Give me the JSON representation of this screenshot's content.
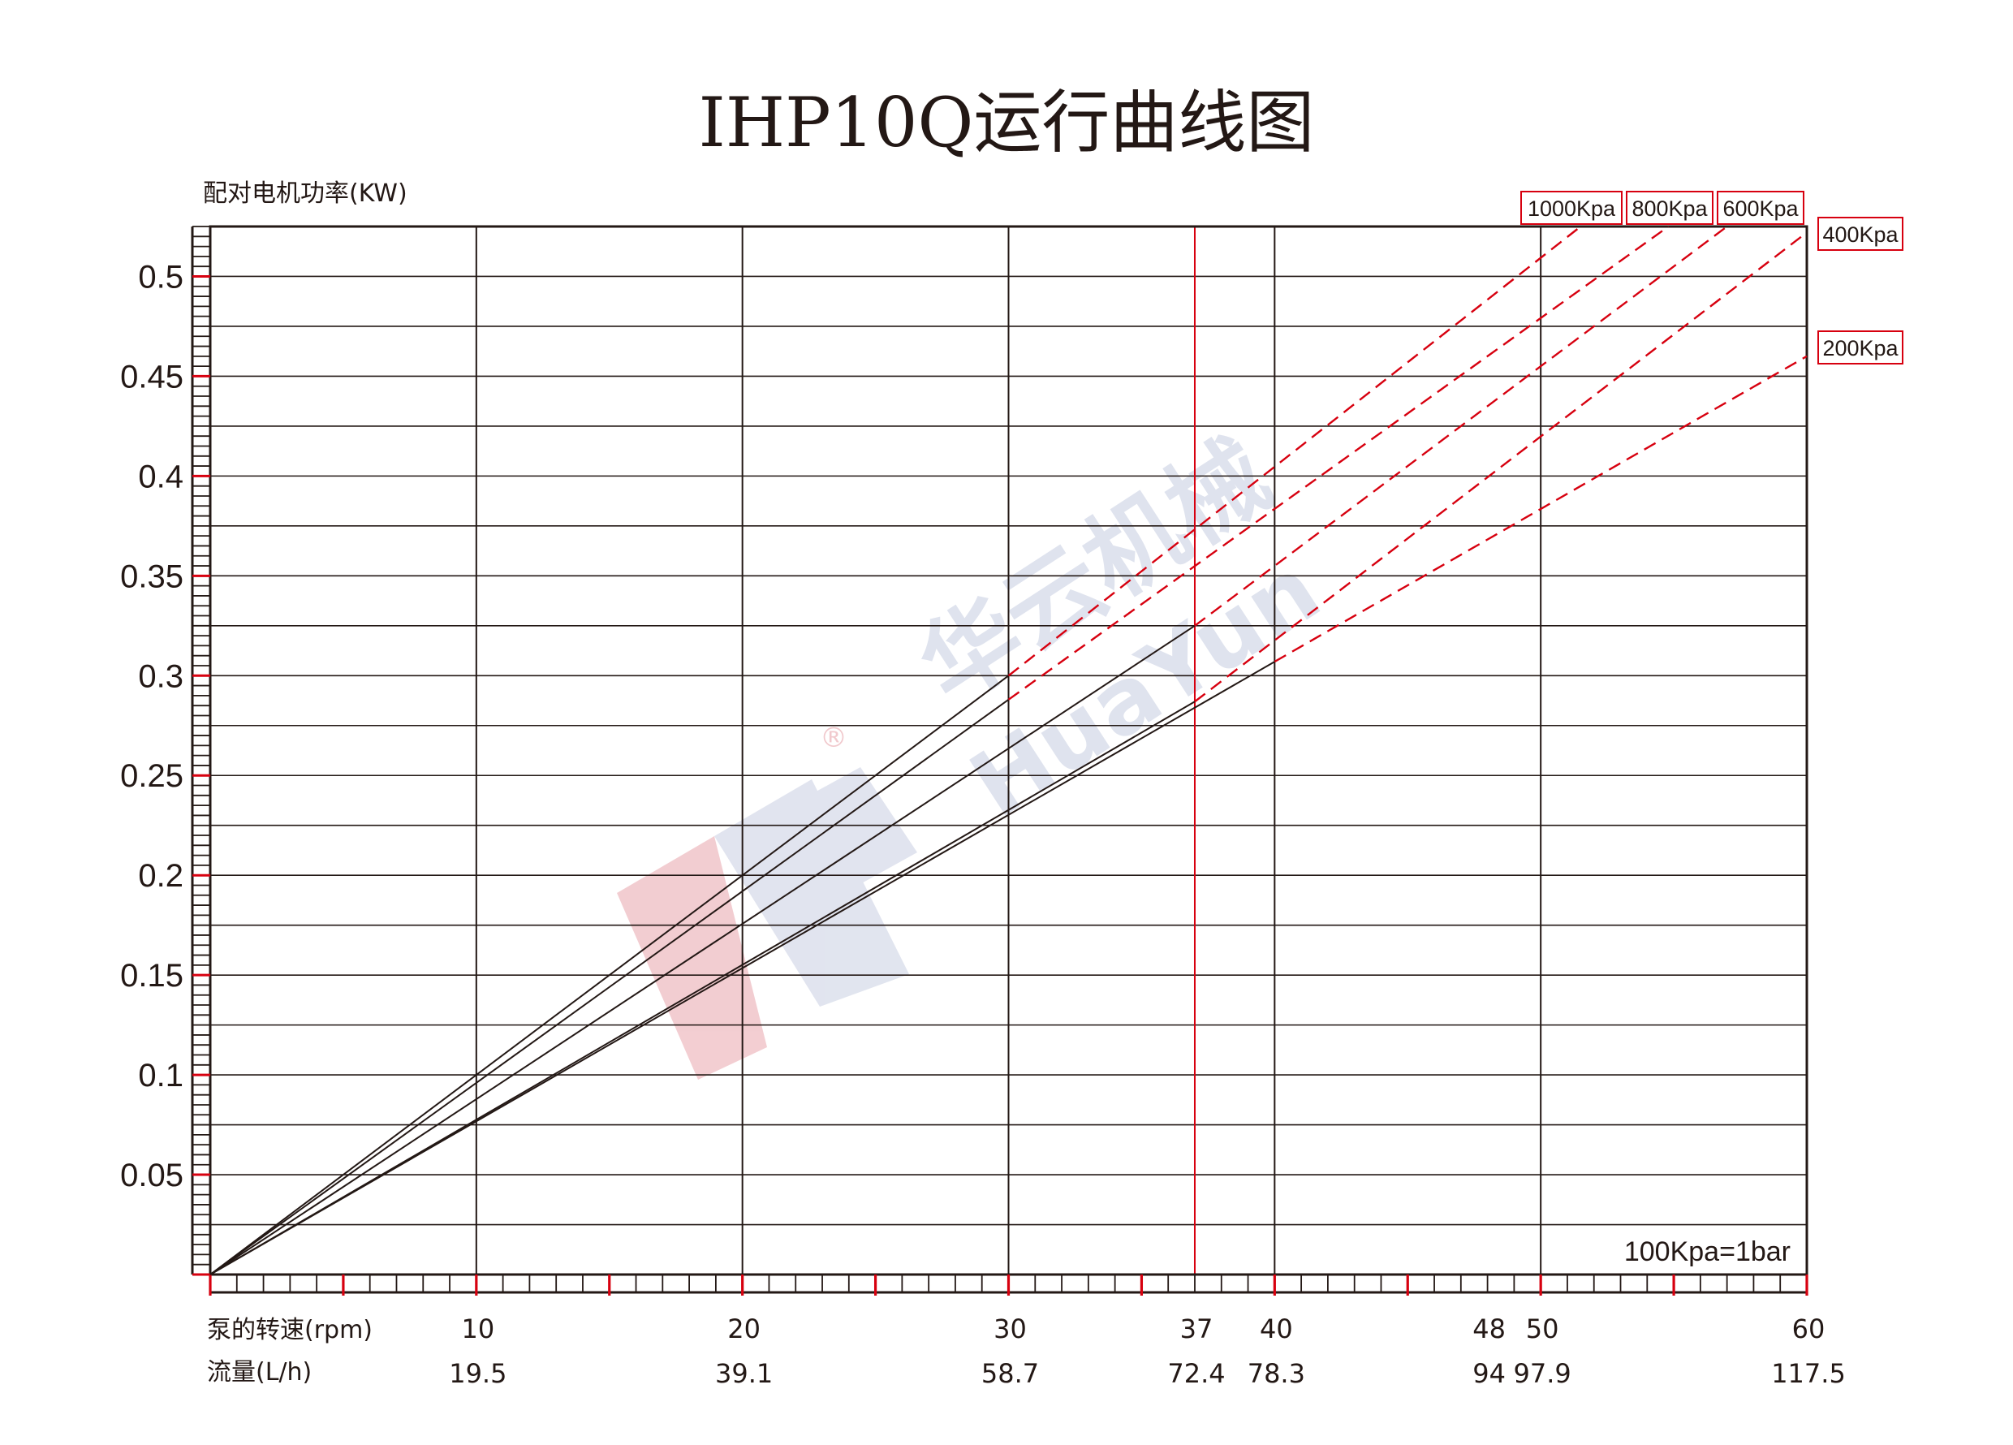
{
  "title": "IHP10Q运行曲线图",
  "colors": {
    "ink": "#231815",
    "accent": "#d7000f",
    "watermark_blue": "#dfe3ee",
    "watermark_red": "#f1c9cd"
  },
  "watermark": {
    "cn": "华云机械",
    "en": "HuaYun",
    "mark": "®"
  },
  "chart_data": {
    "type": "line",
    "title": "IHP10Q运行曲线图",
    "ylabel": "配对电机功率(KW)",
    "xlabel_rpm": "泵的转速(rpm)",
    "xlabel_flow": "流量(L/h)",
    "note": "100Kpa=1bar",
    "xlim": [
      0,
      60
    ],
    "ylim": [
      0,
      0.525
    ],
    "y_ticks": [
      0.05,
      0.1,
      0.15,
      0.2,
      0.25,
      0.3,
      0.35,
      0.4,
      0.45,
      0.5
    ],
    "y_tick_labels": [
      "0.05",
      "0.1",
      "0.15",
      "0.2",
      "0.25",
      "0.3",
      "0.35",
      "0.4",
      "0.45",
      "0.5"
    ],
    "x_ticks": [
      {
        "rpm": 10,
        "rpm_label": "10",
        "flow_label": "19.5",
        "grid": true
      },
      {
        "rpm": 20,
        "rpm_label": "20",
        "flow_label": "39.1",
        "grid": true
      },
      {
        "rpm": 30,
        "rpm_label": "30",
        "flow_label": "58.7",
        "grid": true
      },
      {
        "rpm": 37,
        "rpm_label": "37",
        "flow_label": "72.4",
        "grid": true,
        "highlight": true
      },
      {
        "rpm": 40,
        "rpm_label": "40",
        "flow_label": "78.3",
        "grid": true
      },
      {
        "rpm": 48,
        "rpm_label": "48",
        "flow_label": "94",
        "grid": false
      },
      {
        "rpm": 50,
        "rpm_label": "50",
        "flow_label": "97.9",
        "grid": true
      },
      {
        "rpm": 60,
        "rpm_label": "60",
        "flow_label": "117.5",
        "grid": false
      }
    ],
    "series": [
      {
        "name": "1000Kpa",
        "solid": [
          [
            0,
            0.0
          ],
          [
            30,
            0.3
          ]
        ],
        "dashed": [
          [
            30,
            0.3
          ],
          [
            51.5,
            0.525
          ]
        ]
      },
      {
        "name": "800Kpa",
        "solid": [
          [
            0,
            0.0
          ],
          [
            30,
            0.288
          ]
        ],
        "dashed": [
          [
            30,
            0.288
          ],
          [
            54.8,
            0.525
          ]
        ]
      },
      {
        "name": "600Kpa",
        "solid": [
          [
            0,
            0.0
          ],
          [
            37,
            0.325
          ]
        ],
        "dashed": [
          [
            37,
            0.325
          ],
          [
            57.0,
            0.525
          ]
        ]
      },
      {
        "name": "400Kpa",
        "solid": [
          [
            0,
            0.0
          ],
          [
            37,
            0.287
          ]
        ],
        "dashed": [
          [
            37,
            0.287
          ],
          [
            60,
            0.522
          ]
        ]
      },
      {
        "name": "200Kpa",
        "solid": [
          [
            0,
            0.0
          ],
          [
            40,
            0.307
          ]
        ],
        "dashed": [
          [
            40,
            0.307
          ],
          [
            60,
            0.46
          ]
        ]
      }
    ]
  }
}
